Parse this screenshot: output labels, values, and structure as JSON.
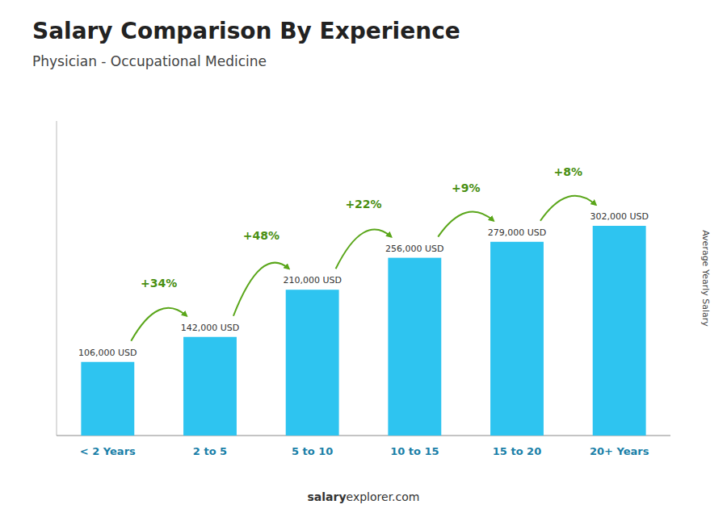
{
  "chart_data": {
    "type": "bar",
    "title": "Salary Comparison By Experience",
    "subtitle": "Physician - Occupational Medicine",
    "y_label": "Average Yearly Salary",
    "categories": [
      "< 2 Years",
      "2 to 5",
      "5 to 10",
      "10 to 15",
      "15 to 20",
      "20+ Years"
    ],
    "values": [
      106000,
      142000,
      210000,
      256000,
      279000,
      302000
    ],
    "value_labels": [
      "106,000 USD",
      "142,000 USD",
      "210,000 USD",
      "256,000 USD",
      "279,000 USD",
      "302,000 USD"
    ],
    "data_labels": true,
    "annotations": [
      "+34%",
      "+48%",
      "+22%",
      "+9%",
      "+8%"
    ],
    "footer": [
      "salary",
      "explorer.com"
    ],
    "color": "#2ec4f0",
    "ylim": [
      0,
      453000
    ],
    "tick_labels": "x",
    "grid": false
  }
}
